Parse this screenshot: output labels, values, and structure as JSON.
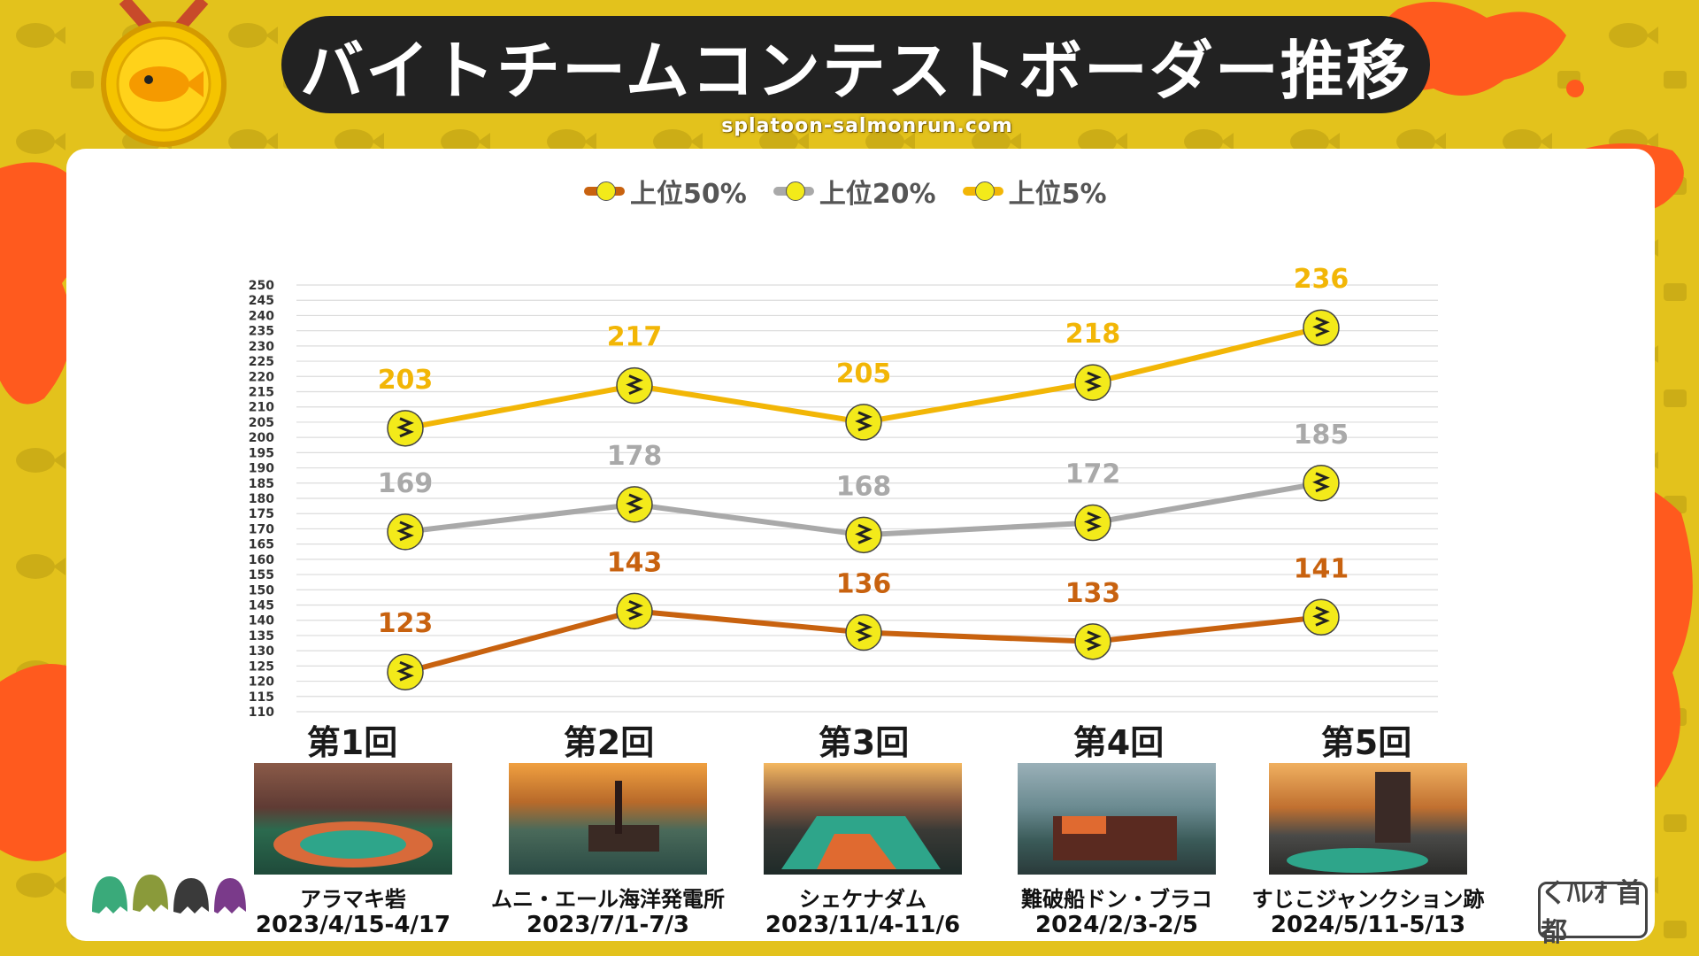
{
  "header": {
    "title": "バイトチームコンテストボーダー推移",
    "site": "splatoon-salmonrun.com"
  },
  "colors": {
    "background": "#e3c21c",
    "top50": "#c8620f",
    "top20": "#a9a9a9",
    "top5": "#f2b606",
    "splat": "#ff5a1e",
    "marker": "#f3ea1a"
  },
  "icons": {
    "medal": "salmon-medal-icon",
    "marker": "salmon-marker-icon"
  },
  "chart_data": {
    "type": "line",
    "title": "バイトチームコンテストボーダー推移",
    "categories": [
      "第1回",
      "第2回",
      "第3回",
      "第4回",
      "第5回"
    ],
    "series": [
      {
        "name": "上位50%",
        "values": [
          123,
          143,
          136,
          133,
          141
        ],
        "color": "#c8620f"
      },
      {
        "name": "上位20%",
        "values": [
          169,
          178,
          168,
          172,
          185
        ],
        "color": "#a9a9a9"
      },
      {
        "name": "上位5%",
        "values": [
          203,
          217,
          205,
          218,
          236
        ],
        "color": "#f2b606"
      }
    ],
    "ylim": [
      110,
      250
    ],
    "yticks": [
      250,
      245,
      240,
      235,
      230,
      225,
      220,
      215,
      210,
      205,
      200,
      195,
      190,
      185,
      180,
      175,
      170,
      165,
      160,
      155,
      150,
      145,
      140,
      135,
      130,
      125,
      120,
      115,
      110
    ],
    "grid": true,
    "legend": "top-center",
    "xlabel": "",
    "ylabel": ""
  },
  "contests": [
    {
      "round": "第1回",
      "stage": "アラマキ砦",
      "dates": "2023/4/15-4/17"
    },
    {
      "round": "第2回",
      "stage": "ムニ・エール海洋発電所",
      "dates": "2023/7/1-7/3"
    },
    {
      "round": "第3回",
      "stage": "シェケナダム",
      "dates": "2023/11/4-11/6"
    },
    {
      "round": "第4回",
      "stage": "難破船ドン・ブラコ",
      "dates": "2024/2/3-2/5"
    },
    {
      "round": "第5回",
      "stage": "すじこジャンクション跡",
      "dates": "2024/5/11-5/13"
    }
  ],
  "logo": {
    "text": "くﾊﾚｵ 首都"
  }
}
